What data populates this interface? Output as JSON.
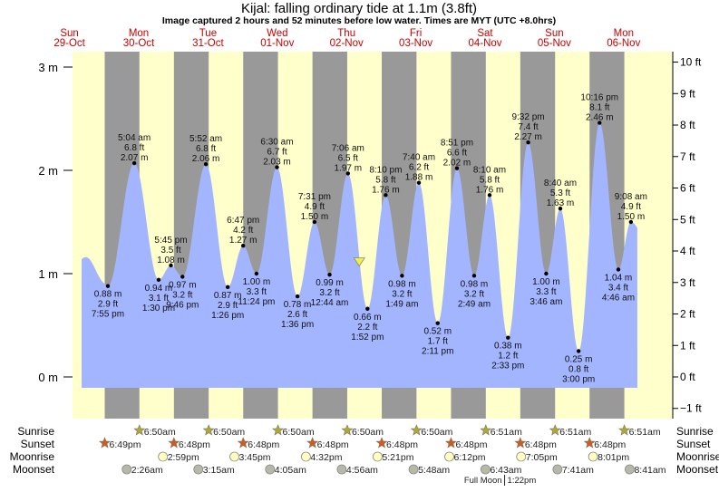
{
  "title": "Kijal: falling  ordinary tide at 1.1m (3.8ft)",
  "subtitle": "Image captured 2 hours and 52 minutes before low water. Times are MYT (UTC +8.0hrs)",
  "colors": {
    "day": "#ffffcc",
    "night": "#999999",
    "water": "#a3b5ff",
    "day_label": "#cc0000",
    "sunrise": "#b0a830",
    "sunset": "#d05a20",
    "moonrise": "#ffffc0",
    "moonset": "#b8b8a8",
    "marker": "#f0f040"
  },
  "chart_data": {
    "type": "area",
    "title": "Kijal: falling  ordinary tide at 1.1m (3.8ft)",
    "y_left": {
      "unit": "m",
      "ticks": [
        "0 m",
        "1 m",
        "2 m",
        "3 m"
      ],
      "values": [
        0,
        1,
        2,
        3
      ]
    },
    "y_right": {
      "unit": "ft",
      "ticks": [
        "−1 ft",
        "0 ft",
        "1 ft",
        "2 ft",
        "3 ft",
        "4 ft",
        "5 ft",
        "6 ft",
        "7 ft",
        "8 ft",
        "9 ft",
        "10 ft"
      ],
      "values": [
        -1,
        0,
        1,
        2,
        3,
        4,
        5,
        6,
        7,
        8,
        9,
        10
      ]
    },
    "days": [
      {
        "name": "Sun",
        "date": "29-Oct"
      },
      {
        "name": "Mon",
        "date": "30-Oct"
      },
      {
        "name": "Tue",
        "date": "31-Oct"
      },
      {
        "name": "Wed",
        "date": "01-Nov"
      },
      {
        "name": "Thu",
        "date": "02-Nov"
      },
      {
        "name": "Fri",
        "date": "03-Nov"
      },
      {
        "name": "Sat",
        "date": "04-Nov"
      },
      {
        "name": "Sun",
        "date": "05-Nov"
      },
      {
        "name": "Mon",
        "date": "06-Nov"
      }
    ],
    "extremes": [
      {
        "type": "low",
        "date": "29-Oct",
        "time": "7:55 pm",
        "m": "0.88 m",
        "ft": "2.9 ft"
      },
      {
        "type": "high",
        "date": "30-Oct",
        "time": "5:04 am",
        "m": "2.07 m",
        "ft": "6.8 ft"
      },
      {
        "type": "low",
        "date": "30-Oct",
        "time": "1:30 pm",
        "m": "0.94 m",
        "ft": "3.1 ft"
      },
      {
        "type": "high",
        "date": "30-Oct",
        "time": "5:45 pm",
        "m": "1.08 m",
        "ft": "3.5 ft"
      },
      {
        "type": "low",
        "date": "30-Oct",
        "time": "9:46 pm",
        "m": "0.97 m",
        "ft": "3.2 ft"
      },
      {
        "type": "high",
        "date": "31-Oct",
        "time": "5:52 am",
        "m": "2.06 m",
        "ft": "6.8 ft"
      },
      {
        "type": "low",
        "date": "31-Oct",
        "time": "1:26 pm",
        "m": "0.87 m",
        "ft": "2.9 ft"
      },
      {
        "type": "high",
        "date": "31-Oct",
        "time": "6:47 pm",
        "m": "1.27 m",
        "ft": "4.2 ft"
      },
      {
        "type": "low",
        "date": "31-Oct",
        "time": "11:24 pm",
        "m": "1.00 m",
        "ft": "3.3 ft"
      },
      {
        "type": "high",
        "date": "01-Nov",
        "time": "6:30 am",
        "m": "2.03 m",
        "ft": "6.7 ft"
      },
      {
        "type": "low",
        "date": "01-Nov",
        "time": "1:36 pm",
        "m": "0.78 m",
        "ft": "2.6 ft"
      },
      {
        "type": "high",
        "date": "01-Nov",
        "time": "7:31 pm",
        "m": "1.50 m",
        "ft": "4.9 ft"
      },
      {
        "type": "low",
        "date": "02-Nov",
        "time": "12:44 am",
        "m": "0.99 m",
        "ft": "3.2 ft"
      },
      {
        "type": "high",
        "date": "02-Nov",
        "time": "7:06 am",
        "m": "1.97 m",
        "ft": "6.5 ft"
      },
      {
        "type": "low",
        "date": "02-Nov",
        "time": "1:52 pm",
        "m": "0.66 m",
        "ft": "2.2 ft"
      },
      {
        "type": "high",
        "date": "02-Nov",
        "time": "8:10 pm",
        "m": "1.76 m",
        "ft": "5.8 ft"
      },
      {
        "type": "low",
        "date": "03-Nov",
        "time": "1:49 am",
        "m": "0.98 m",
        "ft": "3.2 ft"
      },
      {
        "type": "high",
        "date": "03-Nov",
        "time": "7:40 am",
        "m": "1.88 m",
        "ft": "6.2 ft"
      },
      {
        "type": "low",
        "date": "03-Nov",
        "time": "2:11 pm",
        "m": "0.52 m",
        "ft": "1.7 ft"
      },
      {
        "type": "high",
        "date": "03-Nov",
        "time": "8:51 pm",
        "m": "2.02 m",
        "ft": "6.6 ft"
      },
      {
        "type": "low",
        "date": "04-Nov",
        "time": "2:49 am",
        "m": "0.98 m",
        "ft": "3.2 ft"
      },
      {
        "type": "high",
        "date": "04-Nov",
        "time": "8:10 am",
        "m": "1.76 m",
        "ft": "5.8 ft"
      },
      {
        "type": "low",
        "date": "04-Nov",
        "time": "2:33 pm",
        "m": "0.38 m",
        "ft": "1.2 ft"
      },
      {
        "type": "high",
        "date": "04-Nov",
        "time": "9:32 pm",
        "m": "2.27 m",
        "ft": "7.4 ft"
      },
      {
        "type": "low",
        "date": "05-Nov",
        "time": "3:46 am",
        "m": "1.00 m",
        "ft": "3.3 ft"
      },
      {
        "type": "high",
        "date": "05-Nov",
        "time": "8:40 am",
        "m": "1.63 m",
        "ft": "5.3 ft"
      },
      {
        "type": "low",
        "date": "05-Nov",
        "time": "3:00 pm",
        "m": "0.25 m",
        "ft": "0.8 ft"
      },
      {
        "type": "high",
        "date": "05-Nov",
        "time": "10:16 pm",
        "m": "2.46 m",
        "ft": "8.1 ft"
      },
      {
        "type": "low",
        "date": "06-Nov",
        "time": "4:46 am",
        "m": "1.04 m",
        "ft": "3.4 ft"
      },
      {
        "type": "high",
        "date": "06-Nov",
        "time": "9:08 am",
        "m": "1.50 m",
        "ft": "4.9 ft"
      }
    ],
    "current": {
      "date": "02-Nov",
      "time": "11:00 am",
      "m": 1.1,
      "ft": 3.8
    }
  },
  "astro": {
    "sunrise": {
      "label": "Sunrise",
      "events": [
        {
          "date": "30-Oct",
          "time": "6:50am"
        },
        {
          "date": "31-Oct",
          "time": "6:50am"
        },
        {
          "date": "01-Nov",
          "time": "6:50am"
        },
        {
          "date": "02-Nov",
          "time": "6:50am"
        },
        {
          "date": "03-Nov",
          "time": "6:50am"
        },
        {
          "date": "04-Nov",
          "time": "6:51am"
        },
        {
          "date": "05-Nov",
          "time": "6:51am"
        },
        {
          "date": "06-Nov",
          "time": "6:51am"
        }
      ]
    },
    "sunset": {
      "label": "Sunset",
      "events": [
        {
          "date": "29-Oct",
          "time": "6:49pm"
        },
        {
          "date": "30-Oct",
          "time": "6:48pm"
        },
        {
          "date": "31-Oct",
          "time": "6:48pm"
        },
        {
          "date": "01-Nov",
          "time": "6:48pm"
        },
        {
          "date": "02-Nov",
          "time": "6:48pm"
        },
        {
          "date": "03-Nov",
          "time": "6:48pm"
        },
        {
          "date": "04-Nov",
          "time": "6:48pm"
        },
        {
          "date": "05-Nov",
          "time": "6:48pm"
        }
      ]
    },
    "moonrise": {
      "label": "Moonrise",
      "events": [
        {
          "date": "30-Oct",
          "time": "2:59pm"
        },
        {
          "date": "31-Oct",
          "time": "3:45pm"
        },
        {
          "date": "01-Nov",
          "time": "4:32pm"
        },
        {
          "date": "02-Nov",
          "time": "5:21pm"
        },
        {
          "date": "03-Nov",
          "time": "6:12pm"
        },
        {
          "date": "04-Nov",
          "time": "7:05pm"
        },
        {
          "date": "05-Nov",
          "time": "8:01pm"
        }
      ]
    },
    "moonset": {
      "label": "Moonset",
      "events": [
        {
          "date": "30-Oct",
          "time": "2:26am"
        },
        {
          "date": "31-Oct",
          "time": "3:15am"
        },
        {
          "date": "01-Nov",
          "time": "4:05am"
        },
        {
          "date": "02-Nov",
          "time": "4:56am"
        },
        {
          "date": "03-Nov",
          "time": "5:48am"
        },
        {
          "date": "04-Nov",
          "time": "6:43am"
        },
        {
          "date": "05-Nov",
          "time": "7:41am"
        },
        {
          "date": "06-Nov",
          "time": "8:41am"
        }
      ]
    },
    "phase": {
      "label": "Full Moon",
      "date": "04-Nov",
      "time": "1:22pm"
    }
  }
}
